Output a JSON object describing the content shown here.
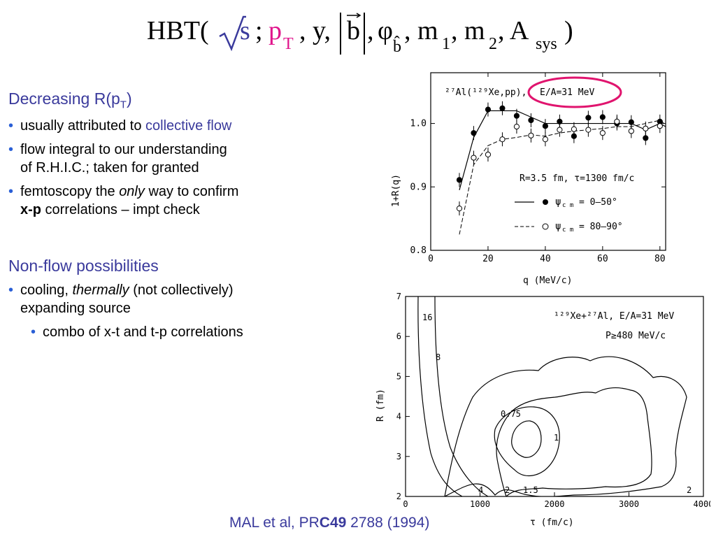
{
  "equation": {
    "hbt": "HBT(",
    "s": "s",
    "semicolon": ";",
    "p": "p",
    "p_sub": "T",
    "y": ", y,",
    "b": "b",
    "comma_b": ",",
    "phi": "φ",
    "phi_sub": "b̂",
    "m1_comma": ", m",
    "m1_sub": "1",
    "m2_comma": ", m",
    "m2_sub": "2",
    "A_comma": ", A",
    "A_sub": "sys",
    "close": ")"
  },
  "left": {
    "decreasing_head": "Decreasing R(p",
    "decreasing_sub": "T",
    "decreasing_close": ")",
    "b1_text": "usually attributed to ",
    "b1_highlight": "collective flow",
    "b2_line1": "flow integral to our understanding",
    "b2_line2": "of R.H.I.C.; taken for granted",
    "b3_a": "femtoscopy the ",
    "b3_only": "only",
    "b3_b": " way to confirm",
    "b3_xp": "x-p",
    "b3_c": " correlations – impt check",
    "nonflow_head": "Non-flow possibilities",
    "b4_a": "cooling, ",
    "b4_therm": "thermally",
    "b4_b": " (not collectively)",
    "b4_line2": "expanding source",
    "b5": "combo of x-t and t-p correlations"
  },
  "citation": {
    "prefix": "MAL et al, PR",
    "bold": "C49",
    "suffix": " 2788 (1994)"
  },
  "chart_data": [
    {
      "type": "scatter",
      "title_text": "²⁷Al(¹²⁹Xe,pp),",
      "highlight_label": "E/A=31 MeV",
      "highlight_color": "#e0146e",
      "info_text": "R=3.5 fm, τ=1300 fm/c",
      "xlabel": "q (MeV/c)",
      "ylabel": "1+R(q)",
      "xlim": [
        0,
        82
      ],
      "ylim": [
        0.8,
        1.08
      ],
      "xticks": [
        "0",
        "20",
        "40",
        "60",
        "80"
      ],
      "yticks": [
        "0.8",
        "0.9",
        "1.0"
      ],
      "series": [
        {
          "name": "ψ_cm = 0–50°",
          "legend_text": "= 0–50°",
          "marker": "filled-circle",
          "line": "solid",
          "x": [
            10,
            15,
            20,
            25,
            30,
            35,
            40,
            45,
            50,
            55,
            60,
            65,
            70,
            75,
            80
          ],
          "y": [
            0.911,
            0.985,
            1.022,
            1.024,
            1.012,
            1.005,
            0.996,
            1.003,
            0.98,
            1.009,
            1.01,
            1.0,
            1.002,
            0.977,
            1.003
          ],
          "model_x": [
            10,
            15,
            20,
            25,
            30,
            35,
            40,
            45,
            50,
            55,
            60,
            65,
            70,
            75,
            80,
            82
          ],
          "model_y": [
            0.895,
            0.978,
            1.02,
            1.02,
            1.02,
            1.01,
            1.0,
            1.0,
            1.0,
            1.0,
            1.0,
            1.0,
            1.0,
            0.99,
            1.0,
            0.995
          ]
        },
        {
          "name": "ψ_cm = 80–90°",
          "legend_text": "= 80–90°",
          "marker": "open-circle",
          "line": "dashed",
          "x": [
            10,
            15,
            20,
            25,
            30,
            35,
            40,
            45,
            50,
            55,
            60,
            65,
            70,
            75,
            80
          ],
          "y": [
            0.866,
            0.946,
            0.951,
            0.975,
            0.995,
            0.981,
            0.975,
            0.99,
            0.991,
            0.99,
            0.985,
            1.003,
            0.988,
            0.992,
            0.996
          ],
          "model_x": [
            10,
            15,
            20,
            25,
            30,
            35,
            40,
            45,
            50,
            55,
            60,
            65,
            70,
            75,
            80,
            82
          ],
          "model_y": [
            0.825,
            0.935,
            0.965,
            0.975,
            0.978,
            0.982,
            0.98,
            0.985,
            0.988,
            0.99,
            0.992,
            0.995,
            0.995,
            1.0,
            1.005,
            0.998
          ]
        }
      ]
    },
    {
      "type": "contour",
      "title_text": "¹²⁹Xe+²⁷Al, E/A=31 MeV",
      "subtitle_text": "P≥480 MeV/c",
      "xlabel": "τ (fm/c)",
      "ylabel": "R (fm)",
      "xlim": [
        0,
        4000
      ],
      "ylim": [
        2,
        7
      ],
      "xticks": [
        "0",
        "1000",
        "2000",
        "3000",
        "4000"
      ],
      "yticks": [
        "2",
        "3",
        "4",
        "5",
        "6",
        "7"
      ],
      "contour_labels": [
        "16",
        "8",
        "4",
        "2",
        "1.5",
        "1",
        "0.75",
        "2"
      ]
    }
  ]
}
